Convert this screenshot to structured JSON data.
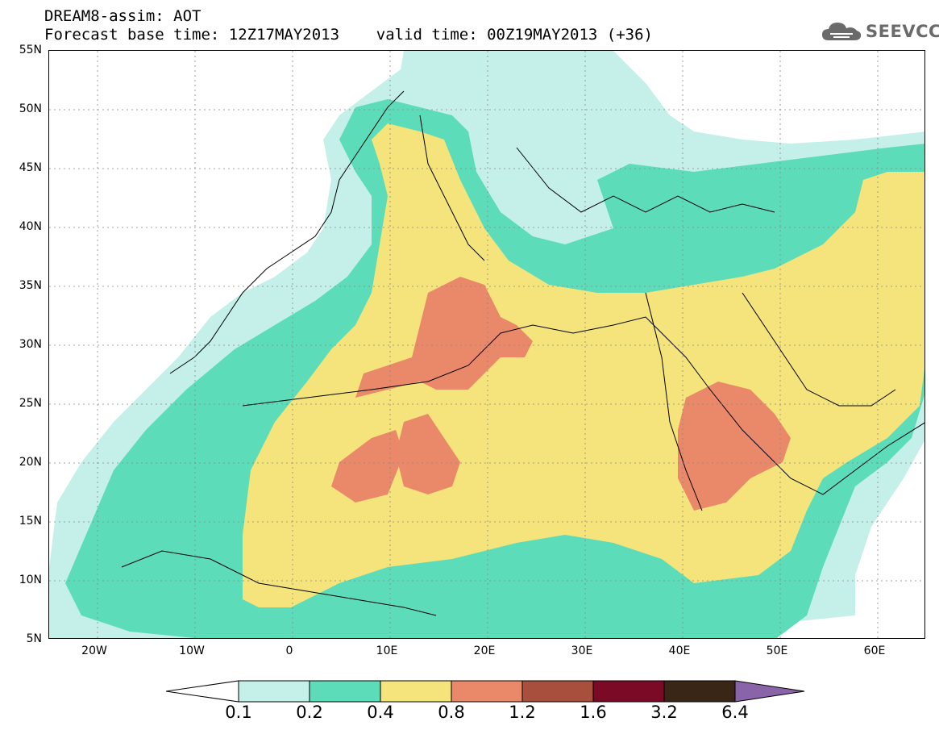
{
  "title": {
    "line1": "DREAM8-assim: AOT",
    "line2": "Forecast base time: 12Z17MAY2013    valid time: 00Z19MAY2013 (+36)"
  },
  "logo": {
    "text": "SEEVCCC",
    "icon": "cloud-icon"
  },
  "map": {
    "projection": "lat-lon",
    "lon_range": [
      -25,
      65
    ],
    "lat_range": [
      5,
      55
    ],
    "y_axis_labels": [
      "55N",
      "50N",
      "45N",
      "40N",
      "35N",
      "30N",
      "25N",
      "20N",
      "15N",
      "10N",
      "5N"
    ],
    "x_axis_labels": [
      "20W",
      "10W",
      "0",
      "10E",
      "20E",
      "30E",
      "40E",
      "50E",
      "60E"
    ],
    "gridlines": "dotted"
  },
  "colorbar": {
    "labels": [
      "0.1",
      "0.2",
      "0.4",
      "0.8",
      "1.2",
      "1.6",
      "3.2",
      "6.4"
    ],
    "colors": [
      "#ffffff",
      "#c4f0e9",
      "#5cdcb8",
      "#f4e47b",
      "#e9896a",
      "#a94f3d",
      "#7a0a26",
      "#3a2616",
      "#8a64a8"
    ]
  }
}
